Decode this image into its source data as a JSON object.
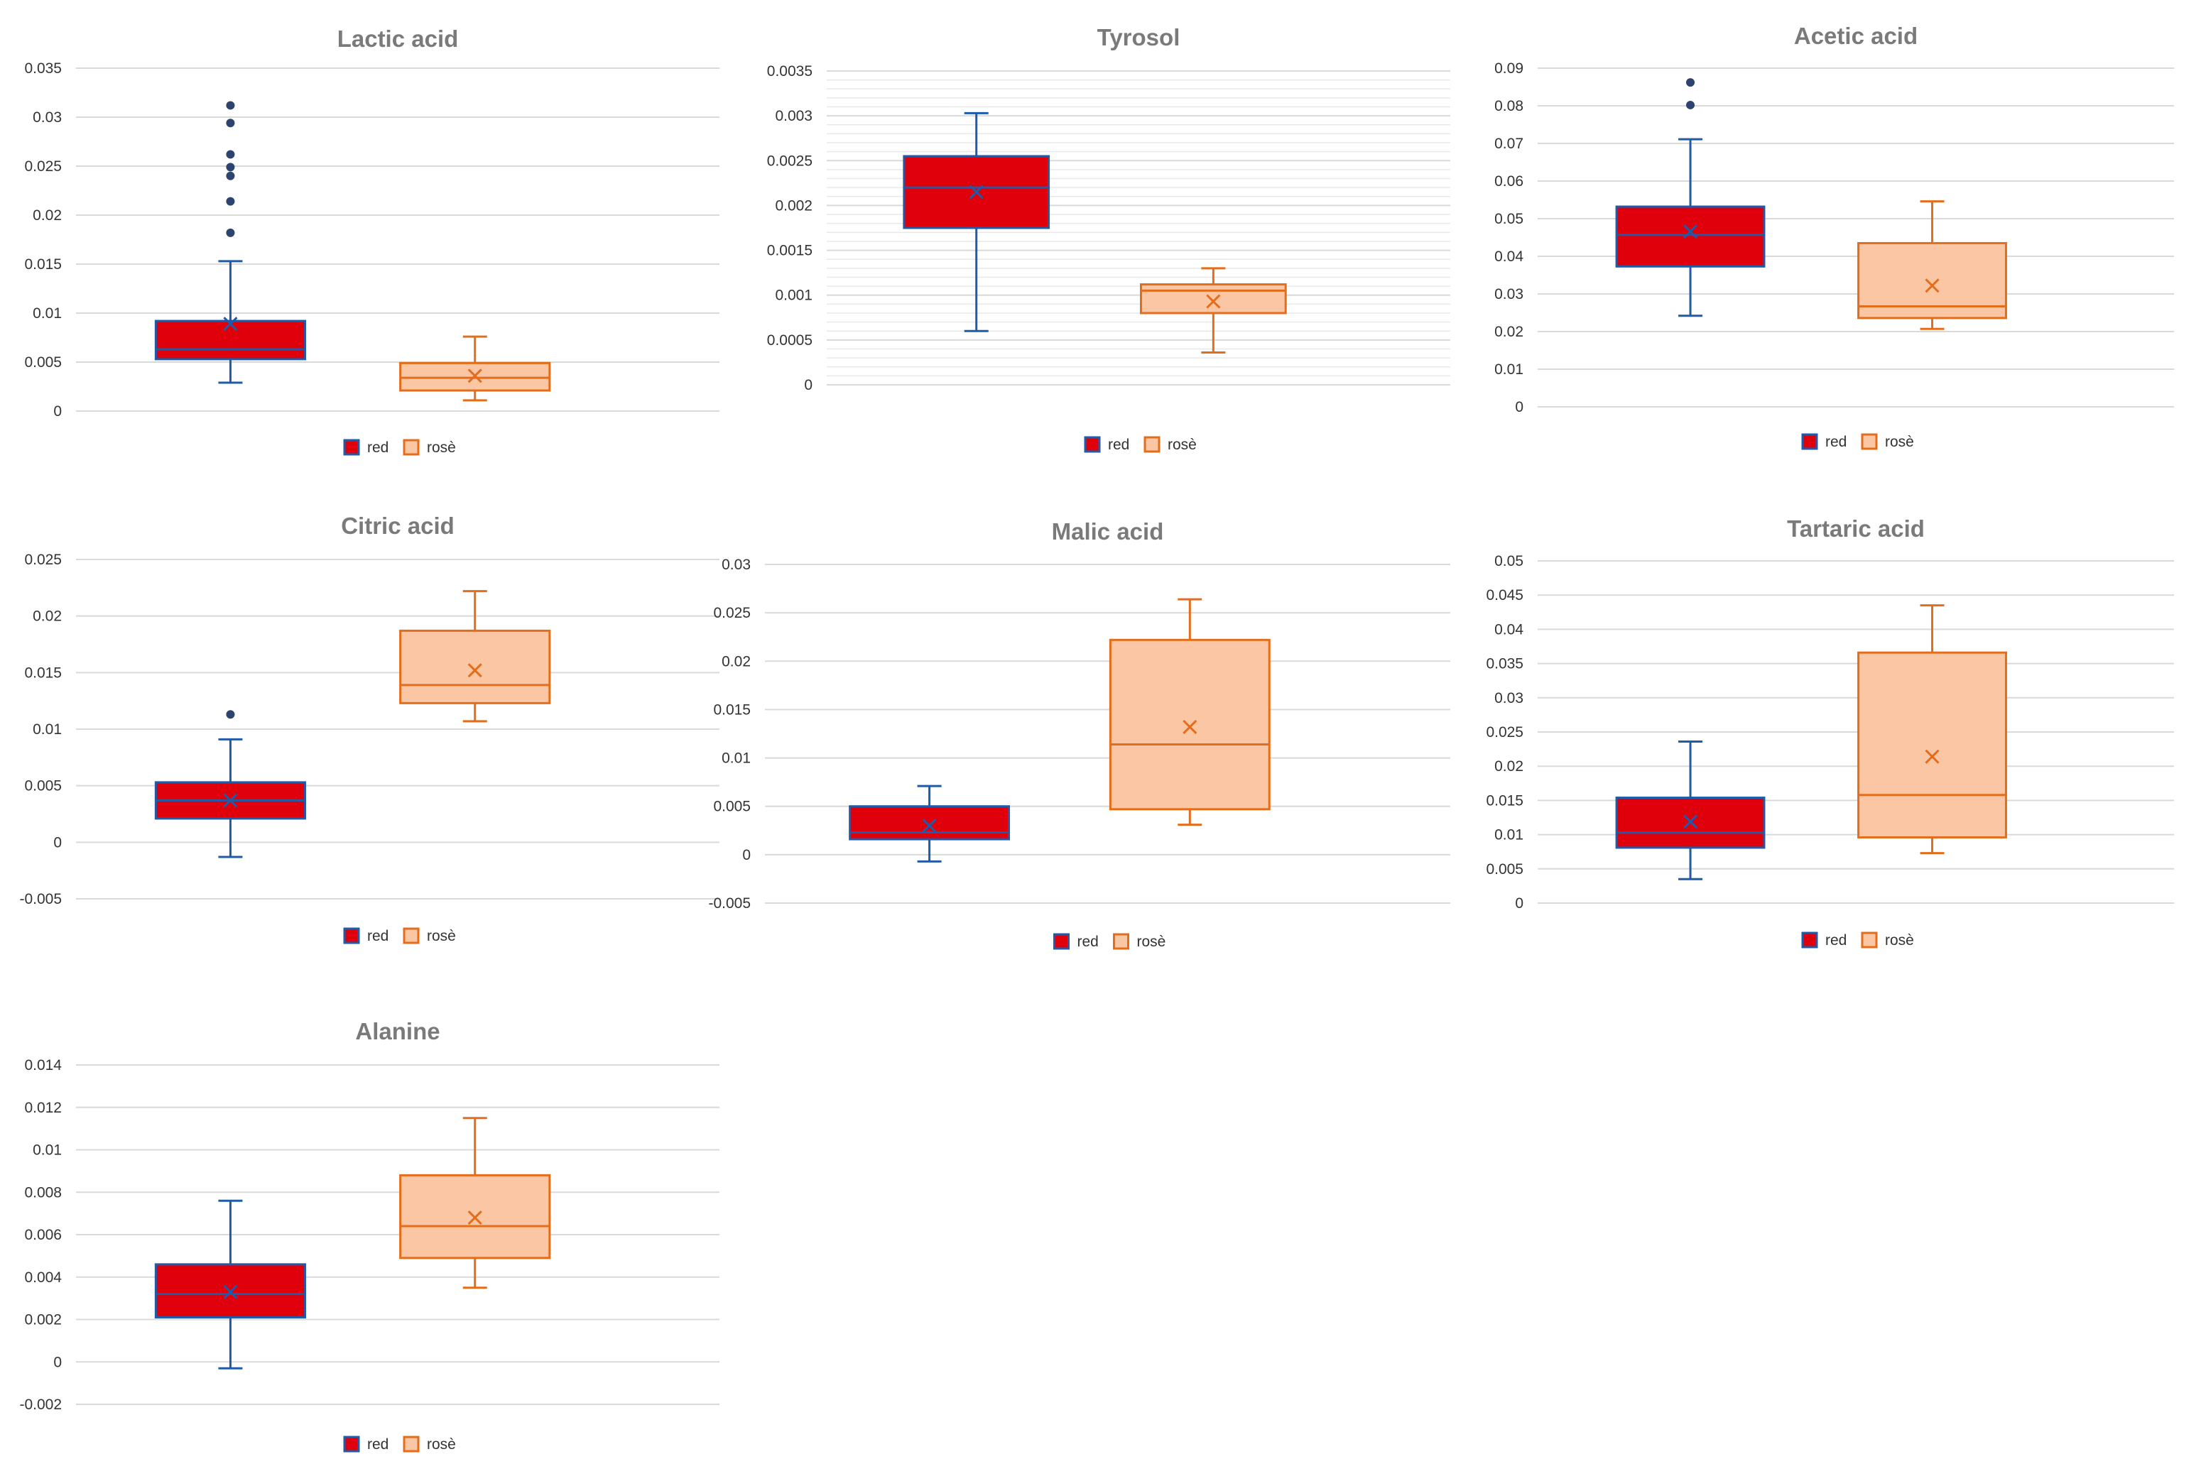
{
  "figure": {
    "legend_labels": [
      "red",
      "rosè"
    ],
    "colors": {
      "red_fill": "#e0000b",
      "red_line": "#1f5ba8",
      "rose_fill": "#fbc6a4",
      "rose_line": "#e46d1c",
      "outlier": "#2e4470",
      "title": "#7a7a7a",
      "tick": "#333333",
      "grid": "#d9d9d9"
    }
  },
  "chart_data": [
    {
      "type": "boxplot",
      "title": "Lactic acid",
      "ylim": [
        0,
        0.035
      ],
      "ytick_labels": [
        "0",
        "0.005",
        "0.01",
        "0.015",
        "0.02",
        "0.025",
        "0.03",
        "0.035"
      ],
      "minor_grid": false,
      "series": [
        {
          "name": "red",
          "min": 0.0029,
          "q1": 0.0053,
          "median": 0.0063,
          "q3": 0.0092,
          "max": 0.0153,
          "mean": 0.0089,
          "outliers": [
            0.0182,
            0.0214,
            0.024,
            0.0249,
            0.0262,
            0.0294,
            0.0312
          ]
        },
        {
          "name": "rosè",
          "min": 0.0011,
          "q1": 0.0021,
          "median": 0.0034,
          "q3": 0.0049,
          "max": 0.0076,
          "mean": 0.0036,
          "outliers": []
        }
      ]
    },
    {
      "type": "boxplot",
      "title": "Tyrosol",
      "ylim": [
        0,
        0.0035
      ],
      "ytick_labels": [
        "0",
        "0.0005",
        "0.001",
        "0.0015",
        "0.002",
        "0.0025",
        "0.003",
        "0.0035"
      ],
      "minor_grid": true,
      "series": [
        {
          "name": "red",
          "min": 0.0006,
          "q1": 0.00175,
          "median": 0.0022,
          "q3": 0.00255,
          "max": 0.00303,
          "mean": 0.00215,
          "outliers": []
        },
        {
          "name": "rosè",
          "min": 0.00036,
          "q1": 0.0008,
          "median": 0.00105,
          "q3": 0.00112,
          "max": 0.0013,
          "mean": 0.00093,
          "outliers": []
        }
      ]
    },
    {
      "type": "boxplot",
      "title": "Acetic acid",
      "ylim": [
        0,
        0.09
      ],
      "ytick_labels": [
        "0",
        "0.01",
        "0.02",
        "0.03",
        "0.04",
        "0.05",
        "0.06",
        "0.07",
        "0.08",
        "0.09"
      ],
      "minor_grid": false,
      "series": [
        {
          "name": "red",
          "min": 0.0242,
          "q1": 0.0373,
          "median": 0.0457,
          "q3": 0.0532,
          "max": 0.0711,
          "mean": 0.0466,
          "outliers": [
            0.0802,
            0.0862
          ]
        },
        {
          "name": "rosè",
          "min": 0.0207,
          "q1": 0.0236,
          "median": 0.0267,
          "q3": 0.0435,
          "max": 0.0546,
          "mean": 0.0322,
          "outliers": []
        }
      ]
    },
    {
      "type": "boxplot",
      "title": "Citric acid",
      "ylim": [
        -0.005,
        0.025
      ],
      "ytick_labels": [
        "-0.005",
        "0",
        "0.005",
        "0.01",
        "0.015",
        "0.02",
        "0.025"
      ],
      "minor_grid": false,
      "series": [
        {
          "name": "red",
          "min": -0.0013,
          "q1": 0.0021,
          "median": 0.0037,
          "q3": 0.0053,
          "max": 0.0091,
          "mean": 0.0037,
          "outliers": [
            0.0113
          ]
        },
        {
          "name": "rosè",
          "min": 0.0107,
          "q1": 0.0123,
          "median": 0.0139,
          "q3": 0.0187,
          "max": 0.0222,
          "mean": 0.0152,
          "outliers": []
        }
      ]
    },
    {
      "type": "boxplot",
      "title": "Malic acid",
      "ylim": [
        -0.005,
        0.03
      ],
      "ytick_labels": [
        "-0.005",
        "0",
        "0.005",
        "0.01",
        "0.015",
        "0.02",
        "0.025",
        "0.03"
      ],
      "minor_grid": false,
      "series": [
        {
          "name": "red",
          "min": -0.0007,
          "q1": 0.0016,
          "median": 0.0023,
          "q3": 0.005,
          "max": 0.0071,
          "mean": 0.003,
          "outliers": []
        },
        {
          "name": "rosè",
          "min": 0.0031,
          "q1": 0.0047,
          "median": 0.0114,
          "q3": 0.0222,
          "max": 0.0264,
          "mean": 0.0132,
          "outliers": []
        }
      ]
    },
    {
      "type": "boxplot",
      "title": "Tartaric acid",
      "ylim": [
        0,
        0.05
      ],
      "ytick_labels": [
        "0",
        "0.005",
        "0.01",
        "0.015",
        "0.02",
        "0.025",
        "0.03",
        "0.035",
        "0.04",
        "0.045",
        "0.05"
      ],
      "minor_grid": false,
      "series": [
        {
          "name": "red",
          "min": 0.0035,
          "q1": 0.0081,
          "median": 0.0103,
          "q3": 0.0154,
          "max": 0.0236,
          "mean": 0.0119,
          "outliers": []
        },
        {
          "name": "rosè",
          "min": 0.0073,
          "q1": 0.0096,
          "median": 0.0158,
          "q3": 0.0366,
          "max": 0.0435,
          "mean": 0.0214,
          "outliers": []
        }
      ]
    },
    {
      "type": "boxplot",
      "title": "Alanine",
      "ylim": [
        -0.002,
        0.014
      ],
      "ytick_labels": [
        "-0.002",
        "0",
        "0.002",
        "0.004",
        "0.006",
        "0.008",
        "0.01",
        "0.012",
        "0.014"
      ],
      "minor_grid": false,
      "series": [
        {
          "name": "red",
          "min": -0.0003,
          "q1": 0.0021,
          "median": 0.0032,
          "q3": 0.0046,
          "max": 0.0076,
          "mean": 0.0033,
          "outliers": []
        },
        {
          "name": "rosè",
          "min": 0.0035,
          "q1": 0.0049,
          "median": 0.0064,
          "q3": 0.0088,
          "max": 0.0115,
          "mean": 0.0068,
          "outliers": []
        }
      ]
    }
  ]
}
